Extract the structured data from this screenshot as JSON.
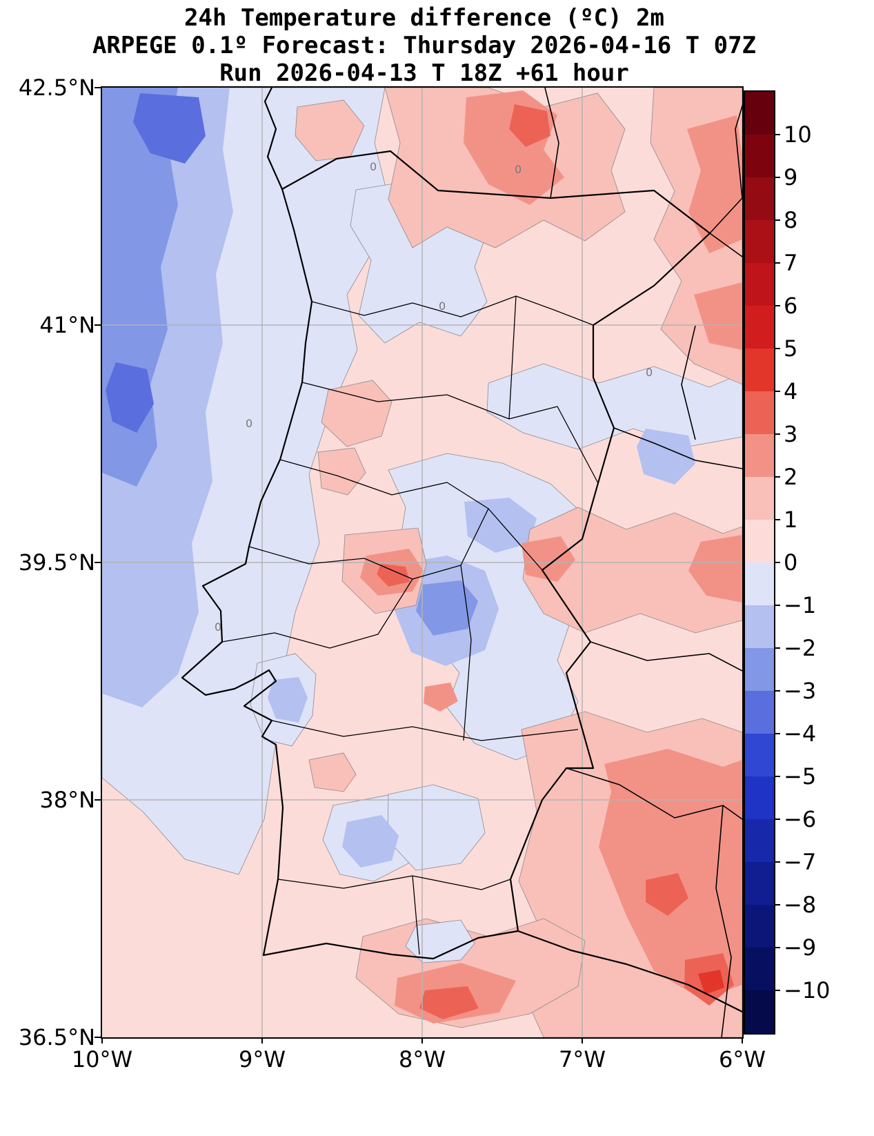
{
  "header": {
    "line1": "24h Temperature difference (ºC) 2m",
    "line2": "ARPEGE 0.1º Forecast: Thursday 2026-04-16 T 07Z",
    "line3": "Run 2026-04-13 T 18Z +61 hour"
  },
  "axes": {
    "lat_ticks": [
      {
        "label": "42.5°N",
        "lat": 42.5
      },
      {
        "label": "41°N",
        "lat": 41
      },
      {
        "label": "39.5°N",
        "lat": 39.5
      },
      {
        "label": "38°N",
        "lat": 38
      },
      {
        "label": "36.5°N",
        "lat": 36.5
      }
    ],
    "lon_ticks": [
      {
        "label": "10°W",
        "lon": -10
      },
      {
        "label": "9°W",
        "lon": -9
      },
      {
        "label": "8°W",
        "lon": -8
      },
      {
        "label": "7°W",
        "lon": -7
      },
      {
        "label": "6°W",
        "lon": -6
      }
    ]
  },
  "colorbar": {
    "range": [
      -11,
      11
    ],
    "tick_labels": [
      "10",
      "9",
      "8",
      "7",
      "6",
      "5",
      "4",
      "3",
      "2",
      "1",
      "0",
      "−1",
      "−2",
      "−3",
      "−4",
      "−5",
      "−6",
      "−7",
      "−8",
      "−9",
      "−10"
    ],
    "colors": [
      "#67000d",
      "#7d040f",
      "#940b13",
      "#aa1016",
      "#bf151a",
      "#d21d1e",
      "#e3362a",
      "#ec6356",
      "#f29287",
      "#f8c0b8",
      "#fcdcd9",
      "#dfe3f8",
      "#b3c0f0",
      "#8297e6",
      "#5a6edd",
      "#3047d4",
      "#1f33c4",
      "#1728ab",
      "#101e92",
      "#0b1678",
      "#070f60"
    ],
    "colors_last": "#040a4a"
  },
  "map": {
    "contour_zero_labels": [
      "0",
      "0",
      "0",
      "0",
      "0",
      "0"
    ]
  },
  "chart_data": {
    "type": "heatmap",
    "title": "24h Temperature difference (ºC) 2m",
    "subtitle": "ARPEGE 0.1º Forecast: Thursday 2026-04-16 T 07Z",
    "run_info": "Run 2026-04-13 T 18Z +61 hour",
    "units": "ºC",
    "lon_range": [
      -10,
      -6
    ],
    "lat_range": [
      36.5,
      42.5
    ],
    "x_tick_labels": [
      "10°W",
      "9°W",
      "8°W",
      "7°W",
      "6°W"
    ],
    "y_tick_labels": [
      "42.5°N",
      "41°N",
      "39.5°N",
      "38°N",
      "36.5°N"
    ],
    "colorbar_ticks": [
      10,
      9,
      8,
      7,
      6,
      5,
      4,
      3,
      2,
      1,
      0,
      -1,
      -2,
      -3,
      -4,
      -5,
      -6,
      -7,
      -8,
      -9,
      -10
    ],
    "colorbar_levels": [
      -11,
      11
    ],
    "grid": "on",
    "legend_position": "right-colorbar",
    "grid_lons": [
      -10,
      -9,
      -8,
      -7,
      -6
    ],
    "grid_lats": [
      42.5,
      41.5,
      40.5,
      39.5,
      38.5,
      37.5,
      36.5
    ],
    "values_degC_rows_north_to_south": [
      [
        -3,
        -1,
        1,
        2,
        1
      ],
      [
        -2,
        0,
        0,
        1,
        2
      ],
      [
        -2,
        0,
        -1,
        1,
        1
      ],
      [
        -2,
        0,
        -1,
        1,
        2
      ],
      [
        -1,
        0,
        0,
        1,
        2
      ],
      [
        -1,
        0,
        1,
        2,
        3
      ],
      [
        0,
        1,
        1,
        2,
        2
      ]
    ],
    "notes": "Filled contour map over Portugal/western Spain. Negative (blue) anomalies over Atlantic NW, positive (red) anomalies over inland east and south."
  }
}
